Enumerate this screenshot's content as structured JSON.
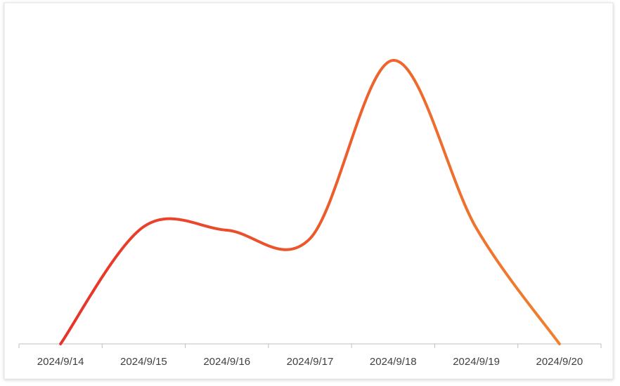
{
  "chart_data": {
    "type": "line",
    "categories": [
      "2024/9/14",
      "2024/9/15",
      "2024/9/16",
      "2024/9/17",
      "2024/9/18",
      "2024/9/19",
      "2024/9/20"
    ],
    "values": [
      0,
      167,
      162,
      150,
      404,
      165,
      0
    ],
    "ylim": [
      0,
      440
    ],
    "gradient": [
      "#e8322a",
      "#f0802e"
    ],
    "smooth": true
  }
}
